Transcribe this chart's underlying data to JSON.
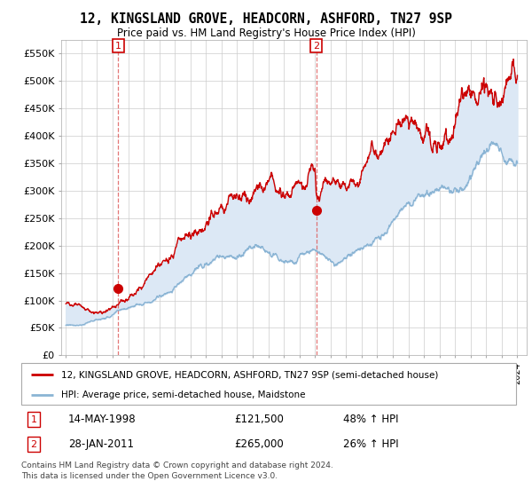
{
  "title": "12, KINGSLAND GROVE, HEADCORN, ASHFORD, TN27 9SP",
  "subtitle": "Price paid vs. HM Land Registry's House Price Index (HPI)",
  "ylim": [
    0,
    575000
  ],
  "yticks": [
    0,
    50000,
    100000,
    150000,
    200000,
    250000,
    300000,
    350000,
    400000,
    450000,
    500000,
    550000
  ],
  "ytick_labels": [
    "£0",
    "£50K",
    "£100K",
    "£150K",
    "£200K",
    "£250K",
    "£300K",
    "£350K",
    "£400K",
    "£450K",
    "£500K",
    "£550K"
  ],
  "sale1_date": 1998.37,
  "sale1_price": 121500,
  "sale2_date": 2011.08,
  "sale2_price": 265000,
  "red_line_color": "#cc0000",
  "blue_line_color": "#8ab4d4",
  "fill_color": "#dce8f5",
  "grid_color": "#cccccc",
  "legend_label_red": "12, KINGSLAND GROVE, HEADCORN, ASHFORD, TN27 9SP (semi-detached house)",
  "legend_label_blue": "HPI: Average price, semi-detached house, Maidstone",
  "footnote1": "Contains HM Land Registry data © Crown copyright and database right 2024.",
  "footnote2": "This data is licensed under the Open Government Licence v3.0.",
  "table_row1": [
    "1",
    "14-MAY-1998",
    "£121,500",
    "48% ↑ HPI"
  ],
  "table_row2": [
    "2",
    "28-JAN-2011",
    "£265,000",
    "26% ↑ HPI"
  ]
}
